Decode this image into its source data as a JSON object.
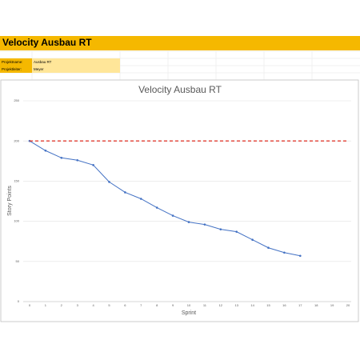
{
  "header": {
    "title": "Velocity Ausbau RT"
  },
  "info": {
    "rows": [
      [
        "Projektname:",
        "Ausbau RT"
      ],
      [
        "Projektleiter:",
        "Meyer"
      ]
    ]
  },
  "chart_data": {
    "type": "line",
    "title": "Velocity Ausbau RT",
    "x_label": "Sprint",
    "y_label": "Story Points",
    "x": [
      0,
      1,
      2,
      3,
      4,
      5,
      6,
      7,
      8,
      9,
      10,
      11,
      12,
      13,
      14,
      15,
      16,
      17,
      18,
      19,
      20
    ],
    "series": [
      {
        "color": "#4472c4",
        "style": "solid",
        "markers": true,
        "values": [
          200,
          188,
          179,
          176,
          170,
          149,
          136,
          128,
          117,
          107,
          99,
          96,
          90,
          87,
          77,
          67,
          61,
          57,
          null,
          null,
          null
        ]
      },
      {
        "color": "#e03c31",
        "style": "dashed",
        "markers": false,
        "values": [
          200,
          200,
          200,
          200,
          200,
          200,
          200,
          200,
          200,
          200,
          200,
          200,
          200,
          200,
          200,
          200,
          200,
          200,
          200,
          200,
          200
        ]
      }
    ],
    "xlim": [
      0,
      20
    ],
    "xticks": [
      0,
      1,
      2,
      3,
      4,
      5,
      6,
      7,
      8,
      9,
      10,
      11,
      12,
      13,
      14,
      15,
      16,
      17,
      18,
      19,
      20
    ],
    "ylim": [
      0,
      250
    ],
    "yticks": [
      0,
      50,
      100,
      150,
      200,
      250
    ],
    "grid": true
  }
}
